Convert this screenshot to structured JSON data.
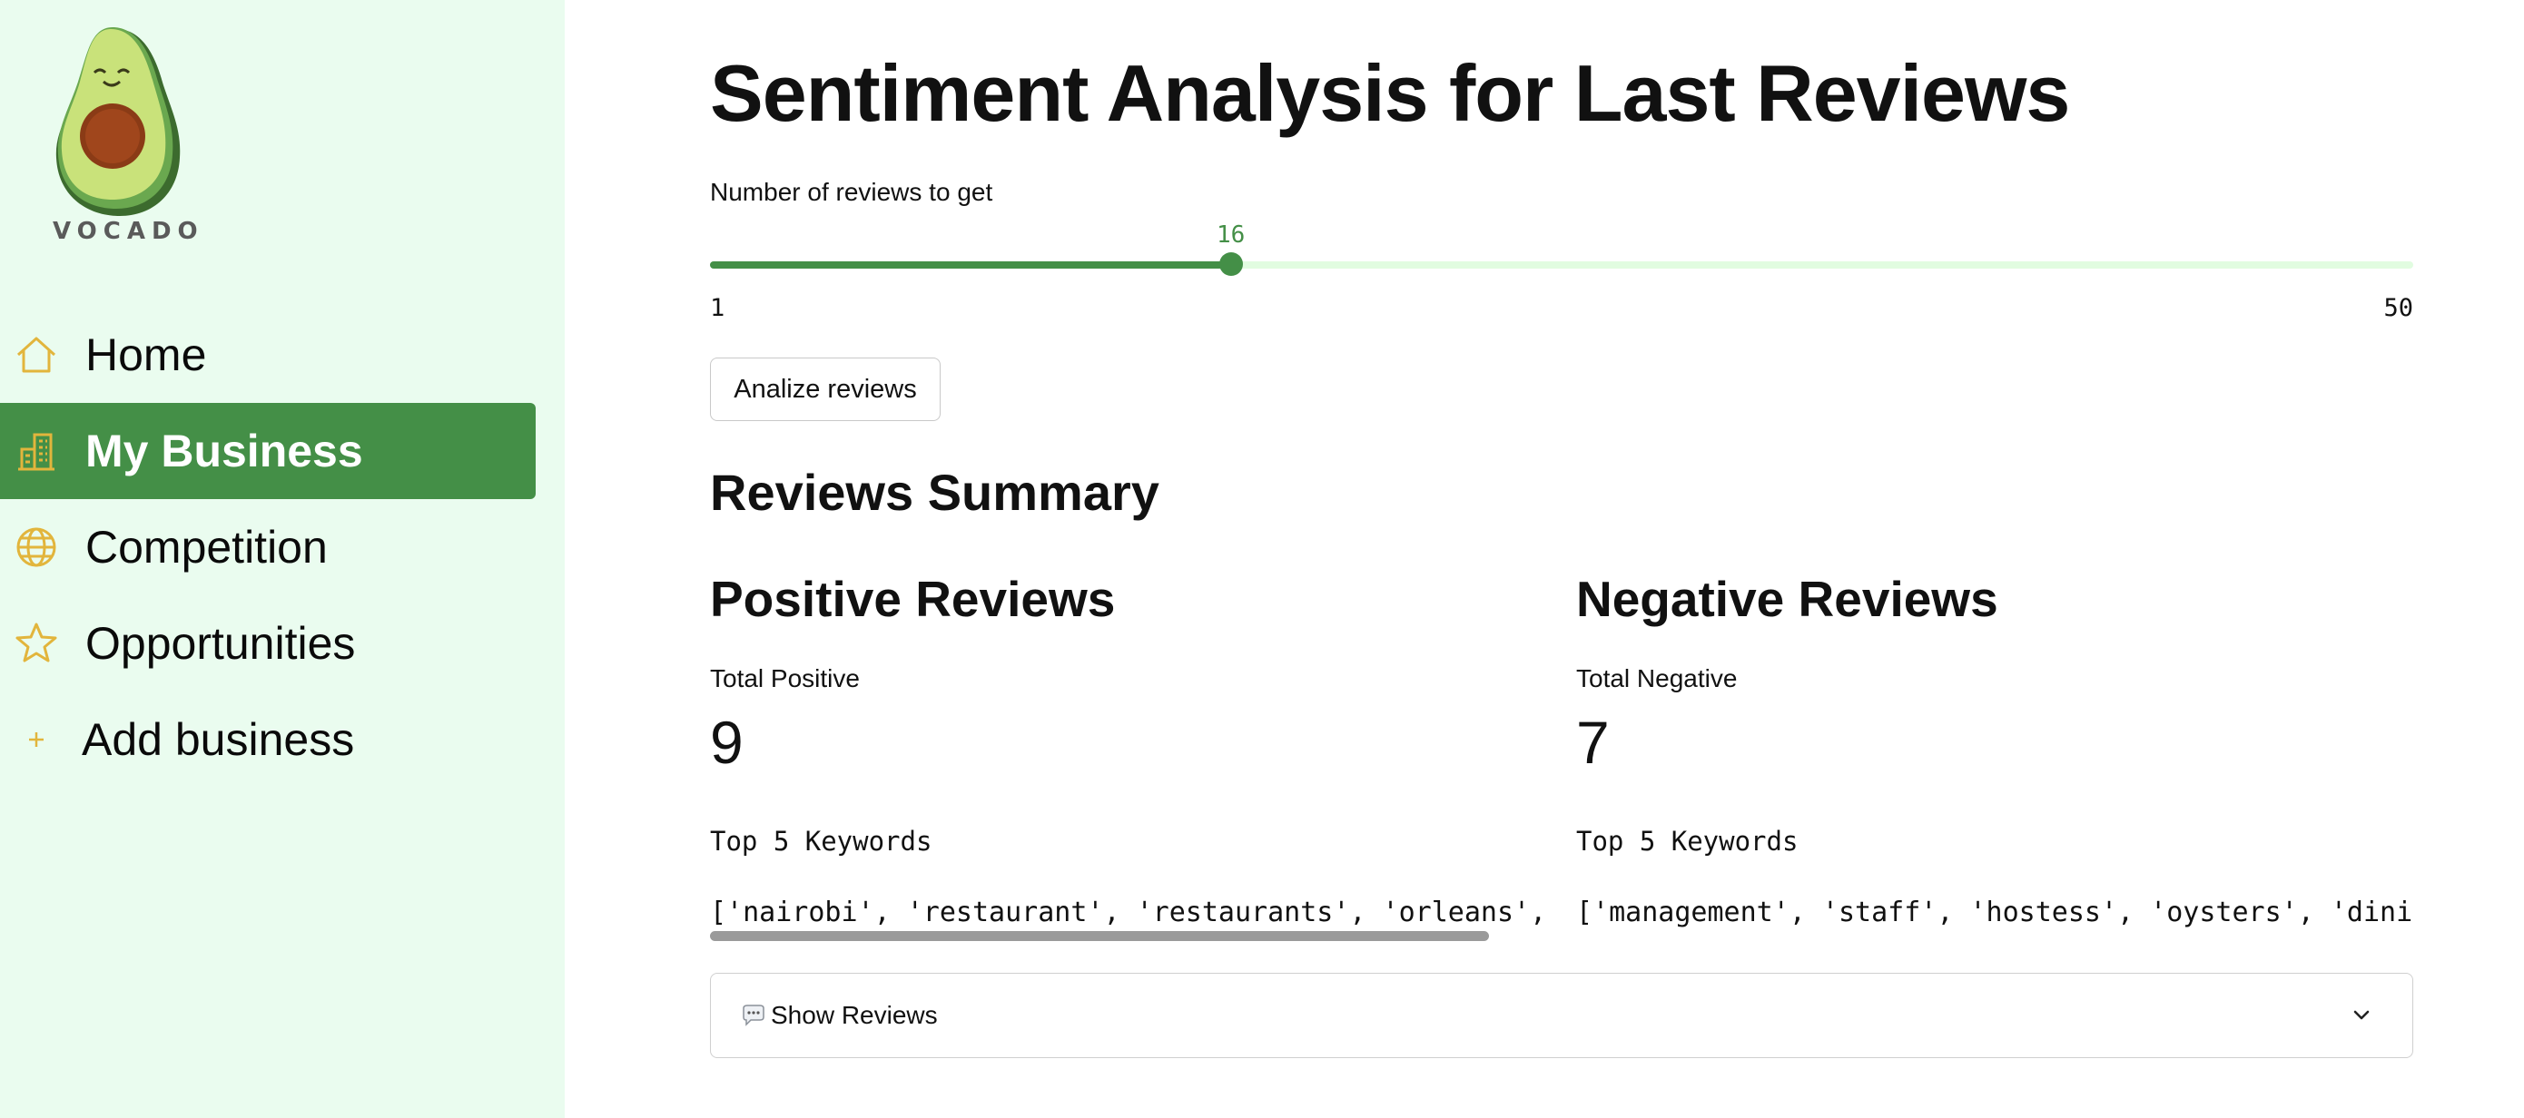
{
  "brand": {
    "name": "VOCADO"
  },
  "sidebar": {
    "items": [
      {
        "label": "Home",
        "icon": "home-icon",
        "active": false
      },
      {
        "label": "My Business",
        "icon": "building-icon",
        "active": true
      },
      {
        "label": "Competition",
        "icon": "globe-icon",
        "active": false
      },
      {
        "label": "Opportunities",
        "icon": "star-icon",
        "active": false
      },
      {
        "label": "Add business",
        "icon": "plus-icon",
        "active": false
      }
    ]
  },
  "colors": {
    "accent": "#448f47",
    "sidebar_bg": "#eafcef",
    "icon": "#e2b53c",
    "track": "#e1fce0"
  },
  "main": {
    "title": "Sentiment Analysis for Last Reviews",
    "slider": {
      "label": "Number of reviews to get",
      "value": "16",
      "min": "1",
      "max": "50",
      "fraction": 0.306
    },
    "analyze_button": "Analize reviews",
    "summary_heading": "Reviews Summary",
    "positive": {
      "heading": "Positive Reviews",
      "metric_label": "Total Positive",
      "metric_value": "9",
      "keywords_label": "Top 5 Keywords",
      "keywords": "['nairobi', 'restaurant', 'restaurants', 'orleans', 'ky"
    },
    "negative": {
      "heading": "Negative Reviews",
      "metric_label": "Total Negative",
      "metric_value": "7",
      "keywords_label": "Top 5 Keywords",
      "keywords": "['management', 'staff', 'hostess', 'oysters', 'dining']"
    },
    "expander": {
      "icon": "speech-bubble-icon",
      "label": "Show Reviews"
    }
  }
}
